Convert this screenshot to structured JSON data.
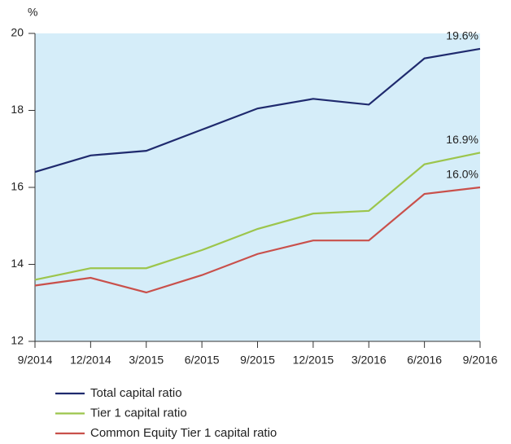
{
  "chart_data": {
    "type": "line",
    "unit": "%",
    "categories": [
      "9/2014",
      "12/2014",
      "3/2015",
      "6/2015",
      "9/2015",
      "12/2015",
      "3/2016",
      "6/2016",
      "9/2016"
    ],
    "series": [
      {
        "name": "Total capital ratio",
        "color": "#1f2a6e",
        "values": [
          16.4,
          16.83,
          16.95,
          17.5,
          18.05,
          18.3,
          18.15,
          19.35,
          19.6
        ],
        "value_labels": [
          null,
          null,
          null,
          null,
          null,
          null,
          null,
          null,
          "19.6%"
        ]
      },
      {
        "name": "Tier 1 capital ratio",
        "color": "#9cc54c",
        "values": [
          13.6,
          13.9,
          13.9,
          14.37,
          14.92,
          15.32,
          15.39,
          16.6,
          16.9
        ],
        "value_labels": [
          null,
          null,
          null,
          null,
          null,
          null,
          null,
          null,
          "16.9%"
        ]
      },
      {
        "name": "Common Equity Tier 1 capital ratio",
        "color": "#c9504b",
        "values": [
          13.45,
          13.65,
          13.27,
          13.72,
          14.27,
          14.62,
          14.62,
          15.83,
          16.0
        ],
        "value_labels": [
          null,
          null,
          null,
          null,
          null,
          null,
          null,
          null,
          "16.0%"
        ]
      }
    ],
    "ylim": [
      12,
      20
    ],
    "yticks": [
      12,
      14,
      16,
      18,
      20
    ],
    "background": "#d5edf9"
  }
}
